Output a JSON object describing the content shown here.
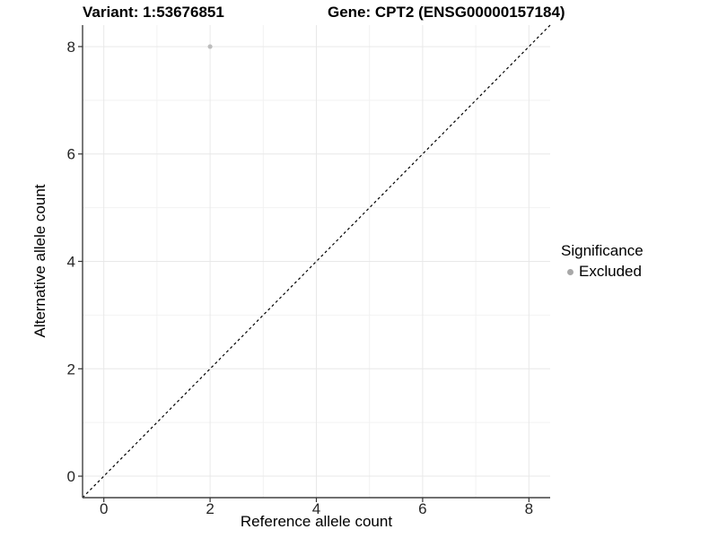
{
  "chart_data": {
    "type": "scatter",
    "title_left": "Variant: 1:53676851",
    "title_right": "Gene: CPT2 (ENSG00000157184)",
    "xlabel": "Reference allele count",
    "ylabel": "Alternative allele count",
    "xlim": [
      -0.4,
      8.4
    ],
    "ylim": [
      -0.4,
      8.4
    ],
    "x_ticks": [
      0,
      2,
      4,
      6,
      8
    ],
    "y_ticks": [
      0,
      2,
      4,
      6,
      8
    ],
    "minor_gridlines": [
      1,
      3,
      5,
      7
    ],
    "grid": true,
    "identity_line": {
      "style": "dashed",
      "color": "#000000"
    },
    "series": [
      {
        "name": "Excluded",
        "color": "#bdbdbd",
        "points": [
          {
            "x": 2,
            "y": 8
          }
        ]
      }
    ],
    "legend": {
      "title": "Significance",
      "position": "right",
      "items": [
        {
          "label": "Excluded",
          "color": "#a8a8a8",
          "marker": "circle"
        }
      ]
    },
    "colors": {
      "background": "#ffffff",
      "grid_major": "#e8e8e8",
      "grid_minor": "#f2f2f2",
      "axis_line": "#404040",
      "tick": "#333333",
      "tick_label": "#262626"
    }
  }
}
